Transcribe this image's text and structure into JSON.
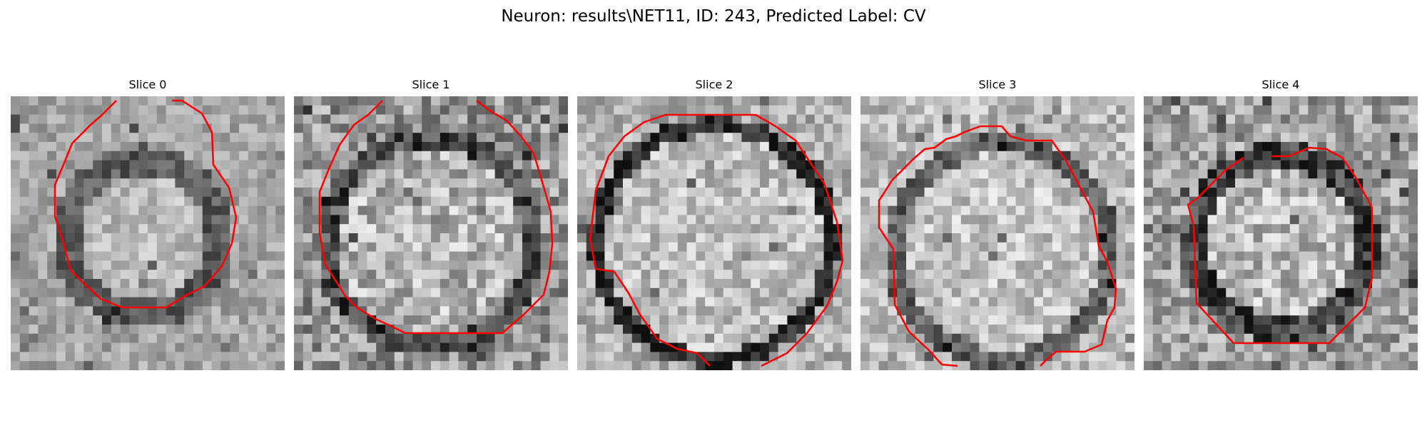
{
  "figure": {
    "title": "Neuron: results\\NET11, ID: 243, Predicted Label: CV"
  },
  "colors": {
    "contour": "#ff0000",
    "background": "#ffffff"
  },
  "panels": [
    {
      "title": "Slice 0"
    },
    {
      "title": "Slice 1"
    },
    {
      "title": "Slice 2"
    },
    {
      "title": "Slice 3"
    },
    {
      "title": "Slice 4"
    }
  ]
}
